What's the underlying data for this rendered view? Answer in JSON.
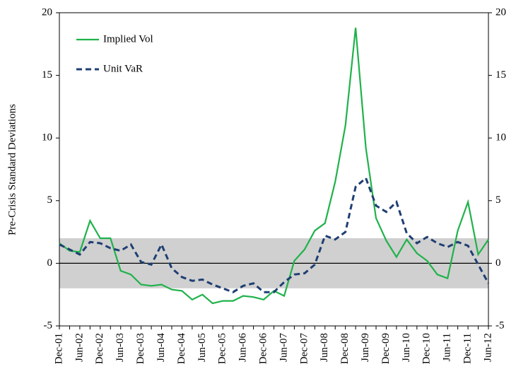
{
  "chart_data": {
    "type": "line",
    "y_label": "Pre-Crisis Standard Deviations",
    "categories": [
      "Dec-01",
      null,
      "Jun-02",
      null,
      "Dec-02",
      null,
      "Jun-03",
      null,
      "Dec-03",
      null,
      "Jun-04",
      null,
      "Dec-04",
      null,
      "Jun-05",
      null,
      "Dec-05",
      null,
      "Jun-06",
      null,
      "Dec-06",
      null,
      "Jun-07",
      null,
      "Dec-07",
      null,
      "Jun-08",
      null,
      "Dec-08",
      null,
      "Jun-09",
      null,
      "Dec-09",
      null,
      "Jun-10",
      null,
      "Dec-10",
      null,
      "Jun-11",
      null,
      "Dec-11",
      null,
      "Jun-12"
    ],
    "series": [
      {
        "name": "Implied Vol",
        "color": "#1fb24a",
        "dash": false,
        "values": [
          1.6,
          1.0,
          0.9,
          3.4,
          2.0,
          2.0,
          -0.6,
          -0.9,
          -1.7,
          -1.8,
          -1.7,
          -2.1,
          -2.2,
          -2.9,
          -2.5,
          -3.2,
          -3.0,
          -3.0,
          -2.6,
          -2.7,
          -2.9,
          -2.2,
          -2.6,
          0.2,
          1.1,
          2.6,
          3.2,
          6.5,
          11.0,
          18.8,
          9.2,
          3.6,
          1.8,
          0.5,
          1.9,
          0.8,
          0.2,
          -0.9,
          -1.2,
          2.6,
          4.9,
          0.7,
          1.9
        ]
      },
      {
        "name": "Unit VaR",
        "color": "#1f3f73",
        "dash": true,
        "values": [
          1.5,
          1.1,
          0.7,
          1.7,
          1.6,
          1.2,
          1.0,
          1.5,
          0.1,
          -0.1,
          1.5,
          -0.4,
          -1.1,
          -1.4,
          -1.3,
          -1.7,
          -2.0,
          -2.3,
          -1.8,
          -1.6,
          -2.3,
          -2.3,
          -1.5,
          -0.9,
          -0.8,
          -0.1,
          2.2,
          1.9,
          2.5,
          6.1,
          6.8,
          4.6,
          4.1,
          4.9,
          2.4,
          1.6,
          2.1,
          1.6,
          1.3,
          1.7,
          1.4,
          -0.1,
          -1.6
        ]
      }
    ],
    "ylim": [
      -5,
      20
    ],
    "yticks": [
      -5,
      0,
      5,
      10,
      15,
      20
    ],
    "y2lim": [
      -5,
      20
    ],
    "y2ticks": [
      -5,
      0,
      5,
      10,
      15,
      20
    ],
    "shaded_band": [
      -2,
      2
    ],
    "band_color": "#d0d0d0",
    "legend": "upper left"
  }
}
